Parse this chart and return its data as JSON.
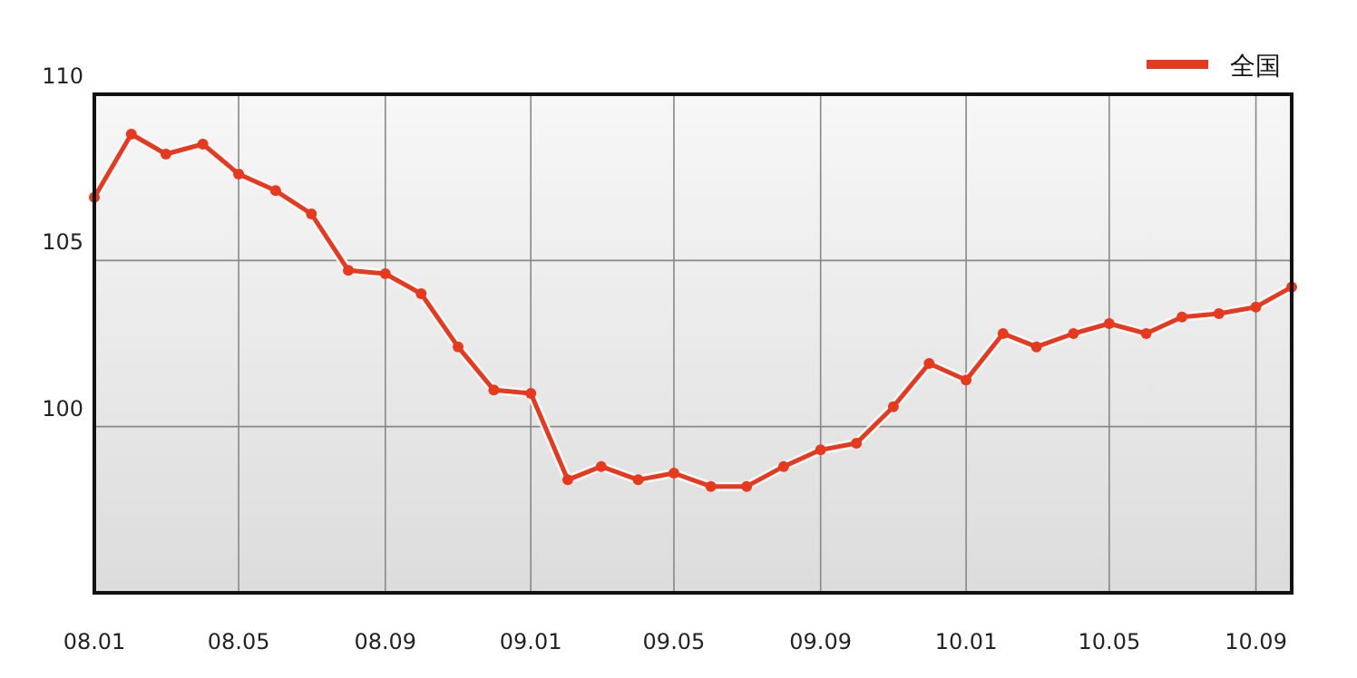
{
  "chart_data": {
    "type": "line",
    "x": [
      "2008-01",
      "2008-02",
      "2008-03",
      "2008-04",
      "2008-05",
      "2008-06",
      "2008-07",
      "2008-08",
      "2008-09",
      "2008-10",
      "2008-11",
      "2008-12",
      "2009-01",
      "2009-02",
      "2009-03",
      "2009-04",
      "2009-05",
      "2009-06",
      "2009-07",
      "2009-08",
      "2009-09",
      "2009-10",
      "2009-11",
      "2009-12",
      "2010-01",
      "2010-02",
      "2010-03",
      "2010-04",
      "2010-05",
      "2010-06",
      "2010-07",
      "2010-08",
      "2010-09",
      "2010-10"
    ],
    "series": [
      {
        "name": "全国",
        "color": "#e8391f",
        "values": [
          106.9,
          108.8,
          108.2,
          108.5,
          107.6,
          107.1,
          106.4,
          104.7,
          104.6,
          104.0,
          102.4,
          101.1,
          101.0,
          98.4,
          98.8,
          98.4,
          98.6,
          98.2,
          98.2,
          98.8,
          99.3,
          99.5,
          100.6,
          101.9,
          101.4,
          102.8,
          102.4,
          102.8,
          103.1,
          102.8,
          103.3,
          103.4,
          103.6,
          104.2
        ]
      }
    ],
    "xlim": [
      "2008-01",
      "2010-10"
    ],
    "xticks": [
      {
        "value": "2008-01",
        "label": "08.01"
      },
      {
        "value": "2008-05",
        "label": "08.05"
      },
      {
        "value": "2008-09",
        "label": "08.09"
      },
      {
        "value": "2009-01",
        "label": "09.01"
      },
      {
        "value": "2009-05",
        "label": "09.05"
      },
      {
        "value": "2009-09",
        "label": "09.09"
      },
      {
        "value": "2010-01",
        "label": "10.01"
      },
      {
        "value": "2010-05",
        "label": "10.05"
      },
      {
        "value": "2010-09",
        "label": "10.09"
      }
    ],
    "ylim": [
      95,
      110
    ],
    "yticks": [
      100,
      105,
      110
    ],
    "grid": true,
    "legend": "top right",
    "marker": "circle",
    "line_style": "solid"
  }
}
